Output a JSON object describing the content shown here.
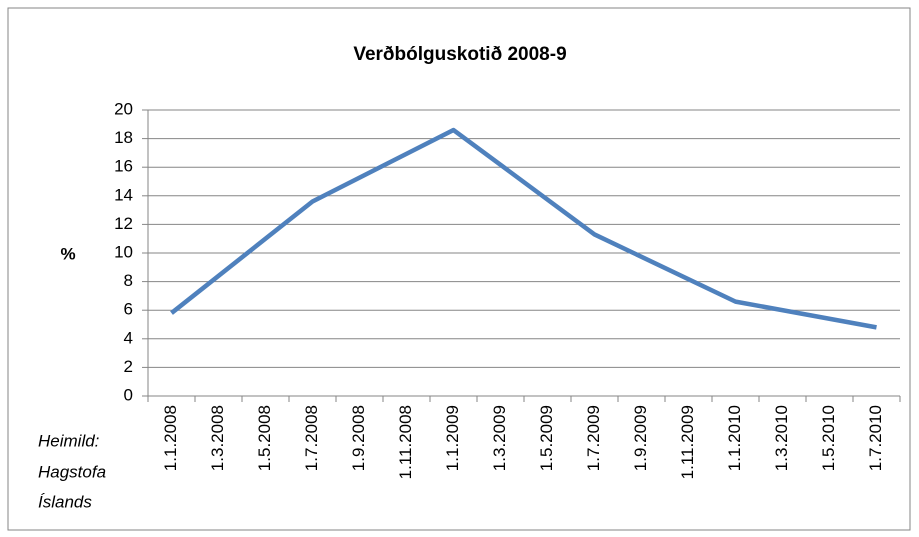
{
  "chart_data": {
    "type": "line",
    "title": "Verðbólguskotið 2008-9",
    "y_label": "%",
    "source": [
      "Heimild:",
      "Hagstofa",
      "Íslands"
    ],
    "categories": [
      "1.1.2008",
      "1.3.2008",
      "1.5.2008",
      "1.7.2008",
      "1.9.2008",
      "1.11.2008",
      "1.1.2009",
      "1.3.2009",
      "1.5.2009",
      "1.7.2009",
      "1.9.2009",
      "1.11.2009",
      "1.1.2010",
      "1.3.2010",
      "1.5.2010",
      "1.7.2010"
    ],
    "series": [
      {
        "color": "#4f81bd",
        "x": [
          "1.1.2008",
          "1.7.2008",
          "1.1.2009",
          "1.7.2009",
          "1.1.2010",
          "1.7.2010"
        ],
        "values": [
          5.8,
          13.6,
          18.6,
          11.3,
          6.6,
          4.8
        ]
      }
    ],
    "ylim": [
      0,
      20
    ],
    "yticks": [
      0,
      2,
      4,
      6,
      8,
      10,
      12,
      14,
      16,
      18,
      20
    ],
    "grid": true
  }
}
